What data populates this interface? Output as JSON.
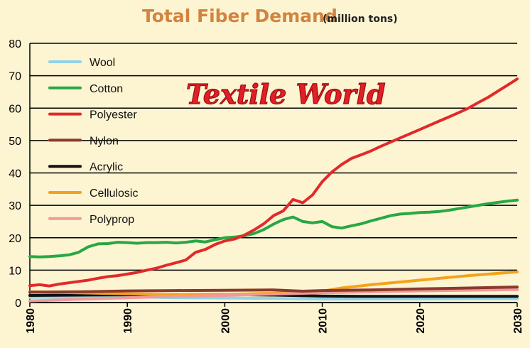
{
  "chart_data": {
    "type": "line",
    "title": "Total Fiber Demand",
    "title_unit": "(million tons)",
    "watermark": "Textile World",
    "xlabel": "",
    "ylabel": "",
    "xlim": [
      1980,
      2030
    ],
    "ylim": [
      0,
      80
    ],
    "x_ticks": [
      1980,
      1990,
      2000,
      2010,
      2020,
      2030
    ],
    "y_ticks": [
      0,
      10,
      20,
      30,
      40,
      50,
      60,
      70,
      80
    ],
    "grid": "horizontal",
    "legend_position": "top-left",
    "series": [
      {
        "name": "Wool",
        "color": "#8fd3e8",
        "points": [
          [
            1980,
            1.6
          ],
          [
            1985,
            1.7
          ],
          [
            1990,
            1.8
          ],
          [
            1995,
            1.5
          ],
          [
            2000,
            1.4
          ],
          [
            2005,
            1.3
          ],
          [
            2010,
            1.1
          ],
          [
            2015,
            1.1
          ],
          [
            2020,
            1.1
          ],
          [
            2025,
            1.2
          ],
          [
            2030,
            1.2
          ]
        ]
      },
      {
        "name": "Cotton",
        "color": "#27a844",
        "points": [
          [
            1980,
            14.2
          ],
          [
            1981,
            14.1
          ],
          [
            1982,
            14.2
          ],
          [
            1983,
            14.4
          ],
          [
            1984,
            14.7
          ],
          [
            1985,
            15.5
          ],
          [
            1986,
            17.2
          ],
          [
            1987,
            18.1
          ],
          [
            1988,
            18.2
          ],
          [
            1989,
            18.6
          ],
          [
            1990,
            18.5
          ],
          [
            1991,
            18.3
          ],
          [
            1992,
            18.5
          ],
          [
            1993,
            18.5
          ],
          [
            1994,
            18.6
          ],
          [
            1995,
            18.4
          ],
          [
            1996,
            18.6
          ],
          [
            1997,
            19.0
          ],
          [
            1998,
            18.7
          ],
          [
            1999,
            19.4
          ],
          [
            2000,
            20.0
          ],
          [
            2001,
            20.2
          ],
          [
            2002,
            20.6
          ],
          [
            2003,
            21.3
          ],
          [
            2004,
            22.5
          ],
          [
            2005,
            24.2
          ],
          [
            2006,
            25.6
          ],
          [
            2007,
            26.4
          ],
          [
            2008,
            25.0
          ],
          [
            2009,
            24.6
          ],
          [
            2010,
            25.0
          ],
          [
            2011,
            23.4
          ],
          [
            2012,
            23.0
          ],
          [
            2013,
            23.7
          ],
          [
            2014,
            24.3
          ],
          [
            2015,
            25.2
          ],
          [
            2016,
            26.0
          ],
          [
            2017,
            26.8
          ],
          [
            2018,
            27.3
          ],
          [
            2019,
            27.5
          ],
          [
            2020,
            27.8
          ],
          [
            2021,
            27.9
          ],
          [
            2022,
            28.1
          ],
          [
            2023,
            28.5
          ],
          [
            2024,
            29.0
          ],
          [
            2025,
            29.5
          ],
          [
            2026,
            30.0
          ],
          [
            2027,
            30.5
          ],
          [
            2028,
            30.9
          ],
          [
            2029,
            31.3
          ],
          [
            2030,
            31.6
          ]
        ]
      },
      {
        "name": "Polyester",
        "color": "#e12a2a",
        "points": [
          [
            1980,
            5.2
          ],
          [
            1981,
            5.5
          ],
          [
            1982,
            5.1
          ],
          [
            1983,
            5.7
          ],
          [
            1984,
            6.1
          ],
          [
            1985,
            6.5
          ],
          [
            1986,
            6.9
          ],
          [
            1987,
            7.5
          ],
          [
            1988,
            8.0
          ],
          [
            1989,
            8.3
          ],
          [
            1990,
            8.8
          ],
          [
            1991,
            9.3
          ],
          [
            1992,
            10.0
          ],
          [
            1993,
            10.6
          ],
          [
            1994,
            11.5
          ],
          [
            1995,
            12.3
          ],
          [
            1996,
            13.1
          ],
          [
            1997,
            15.5
          ],
          [
            1998,
            16.4
          ],
          [
            1999,
            17.9
          ],
          [
            2000,
            19.0
          ],
          [
            2001,
            19.6
          ],
          [
            2002,
            20.8
          ],
          [
            2003,
            22.4
          ],
          [
            2004,
            24.3
          ],
          [
            2005,
            26.8
          ],
          [
            2006,
            28.3
          ],
          [
            2007,
            31.8
          ],
          [
            2008,
            30.8
          ],
          [
            2009,
            33.2
          ],
          [
            2010,
            37.3
          ],
          [
            2011,
            40.3
          ],
          [
            2012,
            42.6
          ],
          [
            2013,
            44.5
          ],
          [
            2014,
            45.6
          ],
          [
            2015,
            46.8
          ],
          [
            2016,
            48.2
          ],
          [
            2017,
            49.5
          ],
          [
            2018,
            50.8
          ],
          [
            2019,
            52.1
          ],
          [
            2020,
            53.4
          ],
          [
            2021,
            54.7
          ],
          [
            2022,
            56.0
          ],
          [
            2023,
            57.3
          ],
          [
            2024,
            58.6
          ],
          [
            2025,
            60.0
          ],
          [
            2026,
            61.7
          ],
          [
            2027,
            63.3
          ],
          [
            2028,
            65.2
          ],
          [
            2029,
            67.1
          ],
          [
            2030,
            69.0
          ]
        ]
      },
      {
        "name": "Nylon",
        "color": "#8a3a2c",
        "points": [
          [
            1980,
            3.2
          ],
          [
            1985,
            3.3
          ],
          [
            1990,
            3.6
          ],
          [
            1995,
            3.7
          ],
          [
            2000,
            3.8
          ],
          [
            2005,
            3.9
          ],
          [
            2008,
            3.5
          ],
          [
            2010,
            3.7
          ],
          [
            2015,
            3.9
          ],
          [
            2020,
            4.2
          ],
          [
            2025,
            4.5
          ],
          [
            2030,
            4.8
          ]
        ]
      },
      {
        "name": "Acrylic",
        "color": "#111111",
        "points": [
          [
            1980,
            2.2
          ],
          [
            1985,
            2.3
          ],
          [
            1990,
            2.4
          ],
          [
            1995,
            2.4
          ],
          [
            2000,
            2.5
          ],
          [
            2005,
            2.3
          ],
          [
            2010,
            2.0
          ],
          [
            2015,
            1.9
          ],
          [
            2020,
            1.9
          ],
          [
            2025,
            1.9
          ],
          [
            2030,
            1.9
          ]
        ]
      },
      {
        "name": "Cellulosic",
        "color": "#f4a21a",
        "points": [
          [
            1980,
            3.3
          ],
          [
            1985,
            3.0
          ],
          [
            1990,
            2.7
          ],
          [
            1995,
            2.4
          ],
          [
            2000,
            2.5
          ],
          [
            2005,
            2.9
          ],
          [
            2008,
            3.0
          ],
          [
            2010,
            3.5
          ],
          [
            2012,
            4.5
          ],
          [
            2015,
            5.5
          ],
          [
            2020,
            6.9
          ],
          [
            2025,
            8.3
          ],
          [
            2030,
            9.5
          ]
        ]
      },
      {
        "name": "Polyprop",
        "color": "#f09a9a",
        "points": [
          [
            1980,
            0.5
          ],
          [
            1985,
            1.0
          ],
          [
            1990,
            1.5
          ],
          [
            1995,
            1.9
          ],
          [
            2000,
            2.2
          ],
          [
            2005,
            2.6
          ],
          [
            2010,
            3.0
          ],
          [
            2015,
            3.3
          ],
          [
            2020,
            3.6
          ],
          [
            2025,
            3.8
          ],
          [
            2030,
            4.0
          ]
        ]
      }
    ]
  }
}
